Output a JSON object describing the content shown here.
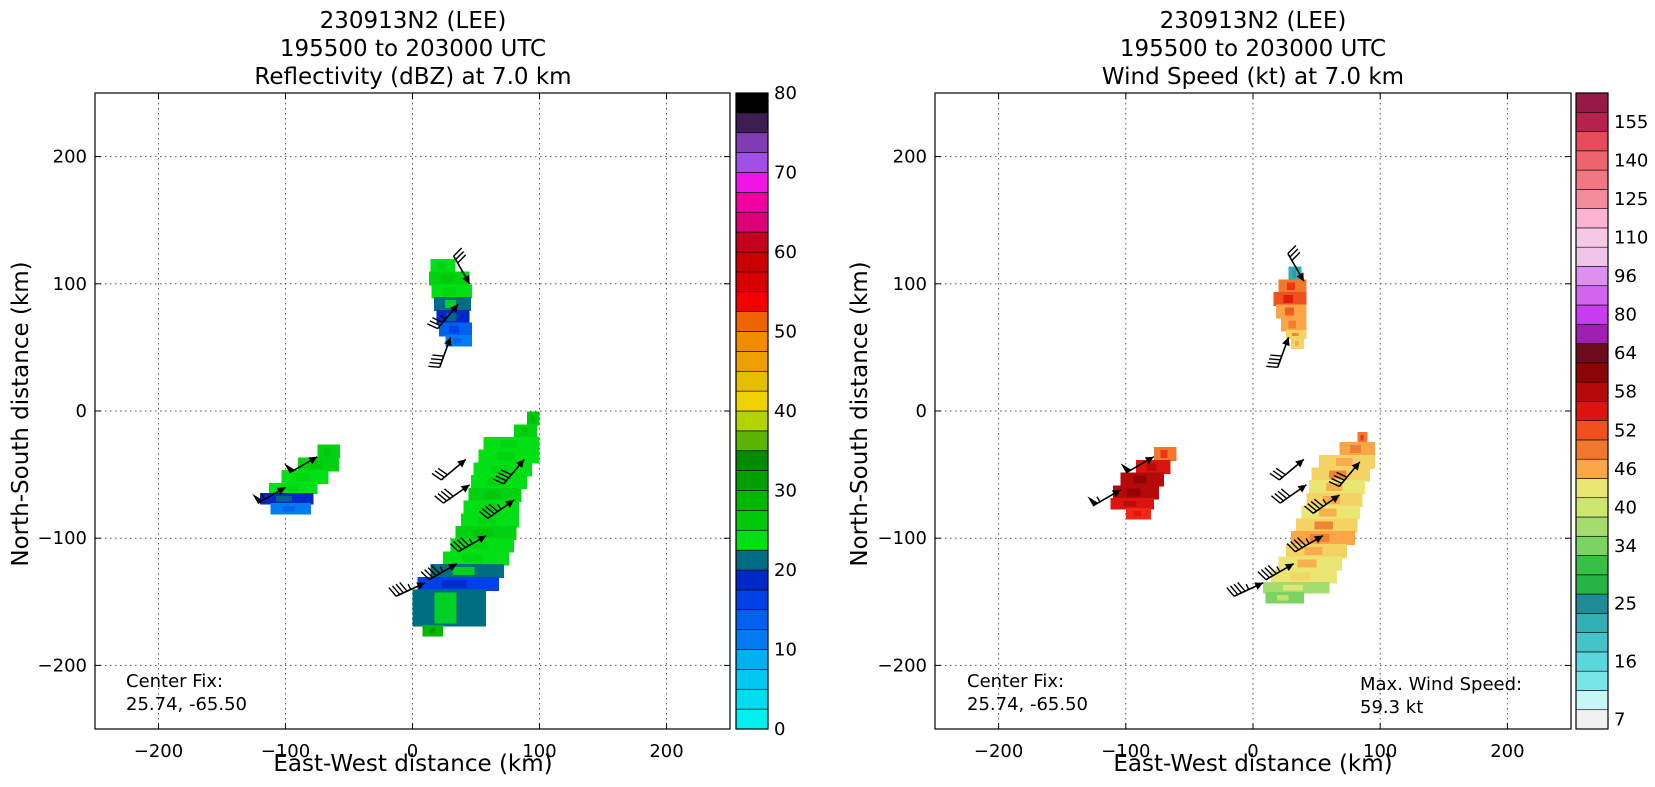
{
  "chart_data": [
    {
      "type": "heatmap",
      "title_lines": [
        "230913N2 (LEE)",
        "195500 to 203000 UTC",
        "Reflectivity (dBZ) at 7.0 km"
      ],
      "xlabel": "East-West distance (km)",
      "ylabel": "North-South distance (km)",
      "xlim": [
        -250,
        250
      ],
      "ylim": [
        -250,
        250
      ],
      "xticks": [
        -200,
        -100,
        0,
        100,
        200
      ],
      "yticks": [
        -200,
        -100,
        0,
        100,
        200
      ],
      "grid": true,
      "annotations": [
        {
          "text": "Center Fix:",
          "corner": "bottom-left",
          "line": 0
        },
        {
          "text": "25.74, -65.50",
          "corner": "bottom-left",
          "line": 1
        }
      ],
      "colorbar": {
        "ticks": [
          "0",
          "10",
          "20",
          "30",
          "40",
          "50",
          "60",
          "70",
          "80"
        ],
        "tick_levels": [
          0,
          10,
          20,
          30,
          40,
          50,
          60,
          70,
          80
        ],
        "levels": 32,
        "colors": [
          "#00f0f0",
          "#00dcf0",
          "#00c8f0",
          "#00b0f0",
          "#0096f0",
          "#007cf0",
          "#0060f0",
          "#0040e8",
          "#0028c8",
          "#006e82",
          "#00e014",
          "#00d20f",
          "#00c80a",
          "#00b800",
          "#00a000",
          "#008c00",
          "#5ab400",
          "#b4d200",
          "#f5f000",
          "#f0d200",
          "#e6be00",
          "#eea000",
          "#f08c00",
          "#f06400",
          "#f50000",
          "#e60000",
          "#d70000",
          "#c80000",
          "#c3001e",
          "#dc0078",
          "#f000a0",
          "#f014e6",
          "#d246e6",
          "#a050e6",
          "#7f3cb4",
          "#3c1e50",
          "#000000"
        ]
      },
      "cells": [
        {
          "region": "north",
          "rows": [
            {
              "y": 118,
              "x0": 14,
              "x1": 34,
              "dbz": 22
            },
            {
              "y": 108,
              "x0": 13,
              "x1": 45,
              "dbz": 24
            },
            {
              "y": 98,
              "x0": 15,
              "x1": 47,
              "dbz": 22
            },
            {
              "y": 88,
              "x0": 17,
              "x1": 46,
              "dbz": 20
            },
            {
              "y": 78,
              "x0": 19,
              "x1": 45,
              "dbz": 18
            },
            {
              "y": 68,
              "x0": 21,
              "x1": 47,
              "dbz": 14
            },
            {
              "y": 58,
              "x0": 26,
              "x1": 47,
              "dbz": 12
            }
          ]
        },
        {
          "region": "west",
          "rows": [
            {
              "y": -28,
              "x0": -75,
              "x1": -57,
              "dbz": 24
            },
            {
              "y": -38,
              "x0": -90,
              "x1": -58,
              "dbz": 25
            },
            {
              "y": -48,
              "x0": -103,
              "x1": -66,
              "dbz": 23
            },
            {
              "y": -58,
              "x0": -113,
              "x1": -75,
              "dbz": 22
            },
            {
              "y": -66,
              "x0": -120,
              "x1": -78,
              "dbz": 18
            },
            {
              "y": -74,
              "x0": -112,
              "x1": -80,
              "dbz": 11
            }
          ]
        },
        {
          "region": "south",
          "rows": [
            {
              "y": -2,
              "x0": 90,
              "x1": 100,
              "dbz": 26
            },
            {
              "y": -12,
              "x0": 80,
              "x1": 98,
              "dbz": 24
            },
            {
              "y": -22,
              "x0": 56,
              "x1": 100,
              "dbz": 23
            },
            {
              "y": -32,
              "x0": 52,
              "x1": 100,
              "dbz": 22
            },
            {
              "y": -42,
              "x0": 48,
              "x1": 94,
              "dbz": 22
            },
            {
              "y": -52,
              "x0": 46,
              "x1": 90,
              "dbz": 23
            },
            {
              "y": -62,
              "x0": 44,
              "x1": 86,
              "dbz": 24
            },
            {
              "y": -72,
              "x0": 40,
              "x1": 84,
              "dbz": 23
            },
            {
              "y": -82,
              "x0": 38,
              "x1": 84,
              "dbz": 22
            },
            {
              "y": -92,
              "x0": 34,
              "x1": 82,
              "dbz": 24
            },
            {
              "y": -102,
              "x0": 30,
              "x1": 80,
              "dbz": 23
            },
            {
              "y": -112,
              "x0": 24,
              "x1": 76,
              "dbz": 22
            },
            {
              "y": -122,
              "x0": 14,
              "x1": 72,
              "dbz": 20
            },
            {
              "y": -132,
              "x0": 4,
              "x1": 68,
              "dbz": 16
            },
            {
              "y": -142,
              "x0": 0,
              "x1": 58,
              "dbz": 20
            },
            {
              "y": -170,
              "x0": 8,
              "x1": 24,
              "dbz": 28
            }
          ]
        }
      ],
      "wind_barbs": [
        {
          "x": 45,
          "y": 100,
          "from_deg": 330,
          "kt": 30
        },
        {
          "x": 36,
          "y": 84,
          "from_deg": 220,
          "kt": 35
        },
        {
          "x": 30,
          "y": 58,
          "from_deg": 200,
          "kt": 40
        },
        {
          "x": -75,
          "y": -36,
          "from_deg": 240,
          "kt": 50
        },
        {
          "x": -100,
          "y": -60,
          "from_deg": 240,
          "kt": 55
        },
        {
          "x": 42,
          "y": -38,
          "from_deg": 230,
          "kt": 30
        },
        {
          "x": 88,
          "y": -38,
          "from_deg": 220,
          "kt": 40
        },
        {
          "x": 45,
          "y": -58,
          "from_deg": 235,
          "kt": 40
        },
        {
          "x": 80,
          "y": -70,
          "from_deg": 235,
          "kt": 45
        },
        {
          "x": 58,
          "y": -98,
          "from_deg": 240,
          "kt": 45
        },
        {
          "x": 35,
          "y": -120,
          "from_deg": 240,
          "kt": 45
        },
        {
          "x": 10,
          "y": -135,
          "from_deg": 245,
          "kt": 45
        }
      ]
    },
    {
      "type": "heatmap",
      "title_lines": [
        "230913N2 (LEE)",
        "195500 to 203000 UTC",
        "Wind Speed (kt) at 7.0 km"
      ],
      "xlabel": "East-West distance (km)",
      "ylabel": "North-South distance (km)",
      "xlim": [
        -250,
        250
      ],
      "ylim": [
        -250,
        250
      ],
      "xticks": [
        -200,
        -100,
        0,
        100,
        200
      ],
      "yticks": [
        -200,
        -100,
        0,
        100,
        200
      ],
      "grid": true,
      "annotations": [
        {
          "text": "Center Fix:",
          "corner": "bottom-left",
          "line": 0
        },
        {
          "text": "25.74, -65.50",
          "corner": "bottom-left",
          "line": 1
        },
        {
          "text": "Max. Wind Speed:",
          "corner": "bottom-right",
          "line": 0
        },
        {
          "text": "59.3 kt",
          "corner": "bottom-right",
          "line": 1
        }
      ],
      "max_wind_kt": 59.3,
      "colorbar": {
        "ticks": [
          "7",
          "16",
          "25",
          "34",
          "40",
          "46",
          "52",
          "58",
          "64",
          "80",
          "96",
          "110",
          "125",
          "140",
          "155"
        ],
        "tick_levels": [
          0,
          3,
          6,
          9,
          11,
          13,
          15,
          17,
          19,
          21,
          23,
          25,
          27,
          29,
          31
        ],
        "levels": 33,
        "colors": [
          "#f0f0f0",
          "#c8f5f5",
          "#a0f0f0",
          "#78e6e6",
          "#5ad7dc",
          "#46c3c8",
          "#32afb4",
          "#249aa0",
          "#1e8c96",
          "#26b446",
          "#36c046",
          "#55c855",
          "#7dd264",
          "#a5dc6e",
          "#cce66e",
          "#ebe673",
          "#f5d264",
          "#faa546",
          "#f0782d",
          "#f0501e",
          "#f02814",
          "#dc140f",
          "#b40a0a",
          "#8c0505",
          "#6e0a1e",
          "#7d1446",
          "#a01eb4",
          "#c83cf0",
          "#d264f0",
          "#dc91f0",
          "#e6aaeb",
          "#f0c3eb",
          "#f5c8e6",
          "#fab4d2",
          "#fa9bb4",
          "#f58c9b",
          "#f07882",
          "#eb646e",
          "#e64b5a",
          "#d23250",
          "#b4234b",
          "#961946"
        ]
      },
      "cells": [
        {
          "region": "north",
          "rows": [
            {
              "y": 112,
              "x0": 28,
              "x1": 38,
              "kt": 20
            },
            {
              "y": 102,
              "x0": 20,
              "x1": 42,
              "kt": 50
            },
            {
              "y": 92,
              "x0": 16,
              "x1": 42,
              "kt": 52
            },
            {
              "y": 82,
              "x0": 18,
              "x1": 42,
              "kt": 48
            },
            {
              "y": 72,
              "x0": 22,
              "x1": 42,
              "kt": 47
            },
            {
              "y": 62,
              "x0": 26,
              "x1": 42,
              "kt": 46
            },
            {
              "y": 56,
              "x0": 30,
              "x1": 40,
              "kt": 45
            }
          ]
        },
        {
          "region": "west",
          "rows": [
            {
              "y": -30,
              "x0": -78,
              "x1": -60,
              "kt": 50
            },
            {
              "y": -40,
              "x0": -92,
              "x1": -65,
              "kt": 55
            },
            {
              "y": -50,
              "x0": -104,
              "x1": -70,
              "kt": 58
            },
            {
              "y": -60,
              "x0": -110,
              "x1": -74,
              "kt": 57
            },
            {
              "y": -70,
              "x0": -112,
              "x1": -78,
              "kt": 55
            },
            {
              "y": -78,
              "x0": -100,
              "x1": -80,
              "kt": 53
            }
          ]
        },
        {
          "region": "south",
          "rows": [
            {
              "y": -18,
              "x0": 82,
              "x1": 90,
              "kt": 50
            },
            {
              "y": -26,
              "x0": 68,
              "x1": 96,
              "kt": 47
            },
            {
              "y": -36,
              "x0": 52,
              "x1": 96,
              "kt": 45
            },
            {
              "y": -46,
              "x0": 46,
              "x1": 92,
              "kt": 46
            },
            {
              "y": -56,
              "x0": 44,
              "x1": 88,
              "kt": 44
            },
            {
              "y": -66,
              "x0": 42,
              "x1": 86,
              "kt": 45
            },
            {
              "y": -76,
              "x0": 38,
              "x1": 84,
              "kt": 44
            },
            {
              "y": -86,
              "x0": 34,
              "x1": 82,
              "kt": 46
            },
            {
              "y": -96,
              "x0": 30,
              "x1": 80,
              "kt": 47
            },
            {
              "y": -106,
              "x0": 26,
              "x1": 74,
              "kt": 45
            },
            {
              "y": -116,
              "x0": 20,
              "x1": 70,
              "kt": 44
            },
            {
              "y": -126,
              "x0": 14,
              "x1": 66,
              "kt": 43
            },
            {
              "y": -136,
              "x0": 8,
              "x1": 60,
              "kt": 40
            },
            {
              "y": -144,
              "x0": 10,
              "x1": 40,
              "kt": 38
            }
          ]
        }
      ],
      "wind_barbs": [
        {
          "x": 40,
          "y": 102,
          "from_deg": 330,
          "kt": 30
        },
        {
          "x": 28,
          "y": 58,
          "from_deg": 200,
          "kt": 40
        },
        {
          "x": -78,
          "y": -36,
          "from_deg": 240,
          "kt": 50
        },
        {
          "x": -104,
          "y": -62,
          "from_deg": 240,
          "kt": 55
        },
        {
          "x": 40,
          "y": -38,
          "from_deg": 230,
          "kt": 30
        },
        {
          "x": 84,
          "y": -40,
          "from_deg": 220,
          "kt": 40
        },
        {
          "x": 42,
          "y": -58,
          "from_deg": 235,
          "kt": 40
        },
        {
          "x": 68,
          "y": -66,
          "from_deg": 235,
          "kt": 45
        },
        {
          "x": 55,
          "y": -98,
          "from_deg": 240,
          "kt": 45
        },
        {
          "x": 32,
          "y": -120,
          "from_deg": 240,
          "kt": 45
        },
        {
          "x": 8,
          "y": -135,
          "from_deg": 245,
          "kt": 45
        }
      ]
    }
  ]
}
